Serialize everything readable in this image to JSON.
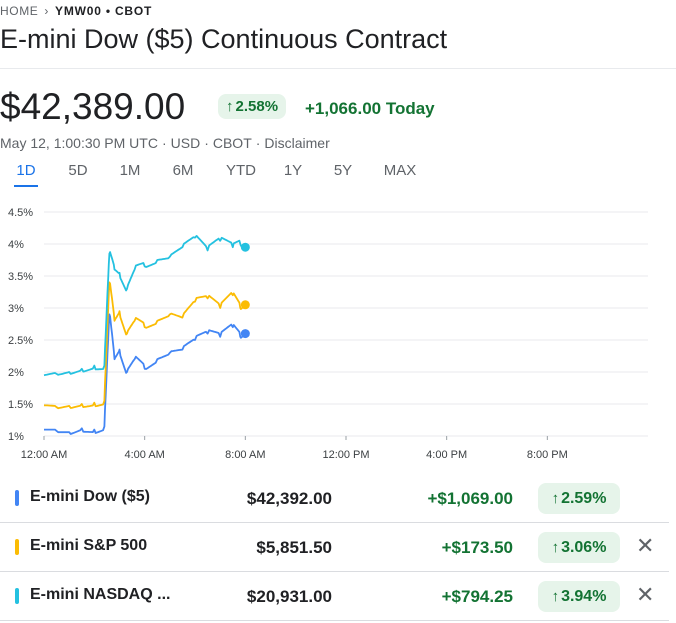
{
  "breadcrumb": {
    "home": "HOME",
    "separator": "›",
    "symbol": "YMW00 • CBOT"
  },
  "title": "E-mini Dow ($5) Continuous Contract",
  "quote": {
    "price": "$42,389.00",
    "change_pct": "2.58%",
    "change_today": "+1,066.00 Today",
    "meta": [
      "May 12, 1:00:30 PM UTC",
      "·",
      "USD",
      "·",
      "CBOT",
      "·",
      "Disclaimer"
    ]
  },
  "tabs": [
    "1D",
    "5D",
    "1M",
    "6M",
    "YTD",
    "1Y",
    "5Y",
    "MAX"
  ],
  "active_tab": "1D",
  "colors": {
    "dow": "#4285f4",
    "sp": "#fbbc04",
    "nasdaq": "#24c1e0",
    "positive": "#137333",
    "positive_bg": "#e6f4ea"
  },
  "chart_data": {
    "type": "line",
    "title": "",
    "xlabel": "",
    "ylabel": "",
    "x_ticks": [
      "12:00 AM",
      "4:00 AM",
      "8:00 AM",
      "12:00 PM",
      "4:00 PM",
      "8:00 PM"
    ],
    "x_tick_hours": [
      0,
      4,
      8,
      12,
      16,
      20
    ],
    "x_range_hours": [
      0,
      24
    ],
    "y_ticks": [
      "1%",
      "1.5%",
      "2%",
      "2.5%",
      "3%",
      "3.5%",
      "4%",
      "4.5%"
    ],
    "y_tick_values": [
      1,
      1.5,
      2,
      2.5,
      3,
      3.5,
      4,
      4.5
    ],
    "ylim": [
      1,
      4.5
    ],
    "series": [
      {
        "name": "E-mini Dow ($5)",
        "color_key": "dow",
        "x": [
          0,
          0.5,
          1,
          1.5,
          2,
          2.4,
          2.6,
          2.8,
          3.0,
          3.3,
          3.6,
          4.0,
          4.5,
          5.0,
          5.5,
          6.0,
          6.5,
          7.0,
          7.5,
          7.8,
          8.0
        ],
        "values": [
          1.1,
          1.08,
          1.06,
          1.12,
          1.1,
          1.15,
          2.9,
          2.2,
          2.35,
          2.0,
          2.2,
          2.05,
          2.2,
          2.3,
          2.35,
          2.5,
          2.6,
          2.55,
          2.7,
          2.55,
          2.6
        ]
      },
      {
        "name": "E-mini S&P 500",
        "color_key": "sp",
        "x": [
          0,
          0.5,
          1,
          1.5,
          2,
          2.4,
          2.6,
          2.8,
          3.0,
          3.3,
          3.6,
          4.0,
          4.5,
          5.0,
          5.5,
          6.0,
          6.5,
          7.0,
          7.5,
          7.8,
          8.0
        ],
        "values": [
          1.48,
          1.45,
          1.47,
          1.5,
          1.52,
          1.55,
          3.4,
          2.8,
          2.95,
          2.6,
          2.8,
          2.7,
          2.8,
          2.9,
          2.85,
          3.1,
          3.15,
          3.0,
          3.2,
          3.0,
          3.05
        ]
      },
      {
        "name": "E-mini NASDAQ ...",
        "color_key": "nasdaq",
        "x": [
          0,
          0.5,
          1,
          1.5,
          2,
          2.4,
          2.6,
          2.8,
          3.0,
          3.3,
          3.6,
          4.0,
          4.5,
          5.0,
          5.5,
          6.0,
          6.5,
          7.0,
          7.5,
          7.8,
          8.0
        ],
        "values": [
          1.95,
          1.97,
          2.0,
          2.05,
          2.1,
          2.1,
          3.85,
          3.6,
          3.55,
          3.3,
          3.6,
          3.65,
          3.75,
          3.8,
          3.95,
          4.1,
          3.9,
          4.05,
          3.95,
          4.0,
          3.95
        ]
      }
    ]
  },
  "compare": [
    {
      "name": "E-mini Dow ($5)",
      "value": "$42,392.00",
      "change": "+$1,069.00",
      "pct": "2.59%",
      "color_key": "dow",
      "removable": false
    },
    {
      "name": "E-mini S&P 500",
      "value": "$5,851.50",
      "change": "+$173.50",
      "pct": "3.06%",
      "color_key": "sp",
      "removable": true
    },
    {
      "name": "E-mini NASDAQ ...",
      "value": "$20,931.00",
      "change": "+$794.25",
      "pct": "3.94%",
      "color_key": "nasdaq",
      "removable": true
    }
  ],
  "icons": {
    "arrow_up": "↑",
    "close": "✕",
    "chevron": "›"
  }
}
